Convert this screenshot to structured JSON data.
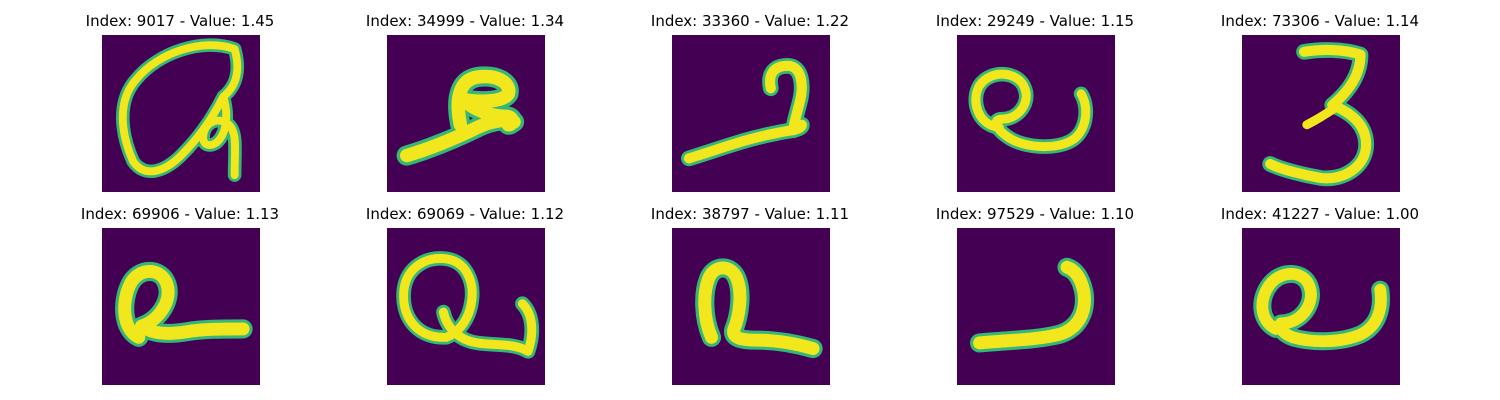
{
  "colors": {
    "background": "#440154",
    "ink_primary": "#f2e61c",
    "ink_secondary": "#35b779",
    "ink_edge": "#1f9e89",
    "text": "#000000"
  },
  "panels": [
    {
      "title": "Index: 9017 - Value: 1.45"
    },
    {
      "title": "Index: 34999 - Value: 1.34"
    },
    {
      "title": "Index: 33360 - Value: 1.22"
    },
    {
      "title": "Index: 29249 - Value: 1.15"
    },
    {
      "title": "Index: 73306 - Value: 1.14"
    },
    {
      "title": "Index: 69906 - Value: 1.13"
    },
    {
      "title": "Index: 69069 - Value: 1.12"
    },
    {
      "title": "Index: 38797 - Value: 1.11"
    },
    {
      "title": "Index: 97529 - Value: 1.10"
    },
    {
      "title": "Index: 41227 - Value: 1.00"
    }
  ]
}
